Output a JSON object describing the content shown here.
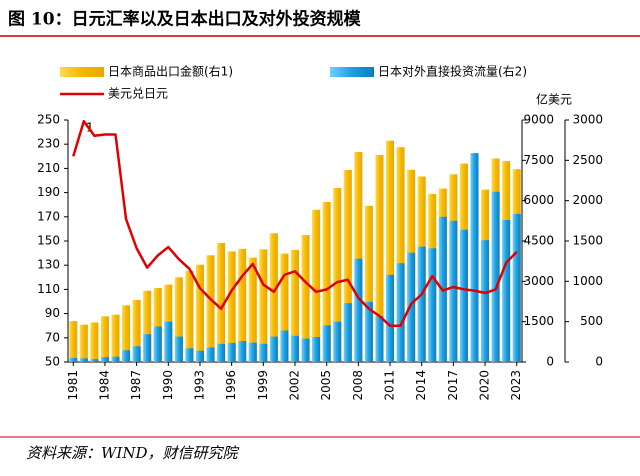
{
  "chart_data": {
    "type": "bar_line",
    "title": "图 10：日元汇率以及日本出口及对外投资规模",
    "y2_unit": "亿美元",
    "annotation": "1",
    "source": "资料来源：WIND，财信研究院",
    "categories": [
      "1981",
      null,
      null,
      "1984",
      null,
      null,
      "1987",
      null,
      null,
      "1990",
      null,
      null,
      "1993",
      null,
      null,
      "1996",
      null,
      null,
      "1999",
      null,
      null,
      "2002",
      null,
      null,
      "2005",
      null,
      null,
      "2008",
      null,
      null,
      "2011",
      null,
      null,
      "2014",
      null,
      null,
      "2017",
      null,
      null,
      "2020",
      null,
      null,
      "2023"
    ],
    "series": [
      {
        "name": "日本商品出口金额(右1)",
        "type": "bar",
        "axis": "y2",
        "color": "#F5B800",
        "values": [
          1520,
          1390,
          1470,
          1700,
          1760,
          2110,
          2310,
          2650,
          2750,
          2880,
          3150,
          3400,
          3620,
          3970,
          4430,
          4110,
          4210,
          3880,
          4190,
          4790,
          4030,
          4170,
          4720,
          5660,
          5950,
          6470,
          7140,
          7810,
          5810,
          7700,
          8230,
          7990,
          7150,
          6900,
          6250,
          6450,
          6980,
          7380,
          7060,
          6410,
          7570,
          7470,
          7170
        ]
      },
      {
        "name": "日本对外直接投资流量(右2)",
        "type": "bar",
        "axis": "y3",
        "color": "#1E9FE0",
        "values": [
          50,
          45,
          35,
          60,
          65,
          145,
          195,
          345,
          440,
          500,
          315,
          170,
          140,
          180,
          225,
          235,
          260,
          240,
          225,
          315,
          390,
          325,
          290,
          310,
          455,
          500,
          730,
          1280,
          745,
          570,
          1080,
          1225,
          1355,
          1430,
          1410,
          1800,
          1750,
          1640,
          2590,
          1510,
          2110,
          1760,
          1835
        ]
      },
      {
        "name": "美元兑日元",
        "type": "line",
        "axis": "y",
        "color": "#E00000",
        "values": [
          220,
          249,
          237,
          238,
          238,
          168,
          144,
          128,
          138,
          145,
          135,
          127,
          111,
          102,
          94,
          109,
          121,
          131,
          114,
          108,
          122,
          125,
          116,
          108,
          110,
          116,
          118,
          103,
          94,
          88,
          80,
          80,
          98,
          106,
          121,
          109,
          112,
          110,
          109,
          107,
          110,
          132,
          141
        ]
      }
    ],
    "ylim": [
      50,
      250
    ],
    "yticks": [
      50,
      70,
      90,
      110,
      130,
      150,
      170,
      190,
      210,
      230,
      250
    ],
    "y2lim": [
      0,
      9000
    ],
    "y2ticks": [
      0,
      1500,
      3000,
      4500,
      6000,
      7500,
      9000
    ],
    "y3lim": [
      0,
      3000
    ],
    "y3ticks": [
      0,
      500,
      1000,
      1500,
      2000,
      2500,
      3000
    ]
  }
}
